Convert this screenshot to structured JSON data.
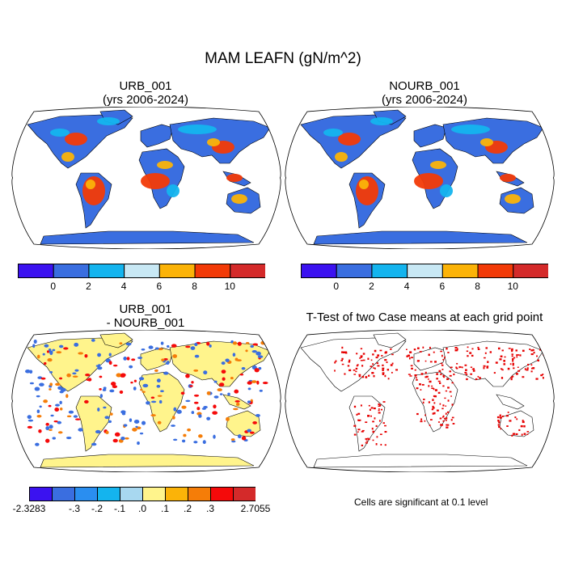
{
  "figure": {
    "title": "MAM LEAFN (gN/m^2)"
  },
  "panels": [
    {
      "line1": "URB_001",
      "line2": "(yrs 2006-2024)"
    },
    {
      "line1": "NOURB_001",
      "line2": "(yrs 2006-2024)"
    },
    {
      "line1": "URB_001",
      "line2": "- NOURB_001"
    },
    {
      "line1": "T-Test of two Case means at each grid point",
      "line2": ""
    }
  ],
  "colorbar_main": {
    "colors": [
      "#3b12f0",
      "#3a6ee0",
      "#14b4ee",
      "#c8e8f4",
      "#fbb308",
      "#f23a07",
      "#d42a2a"
    ],
    "tick_labels": [
      "0",
      "2",
      "4",
      "6",
      "8",
      "10"
    ]
  },
  "colorbar_diff": {
    "colors": [
      "#3b12f0",
      "#3a6ee0",
      "#2a8ef0",
      "#14b4ee",
      "#a8d8f0",
      "#fff48c",
      "#fbb308",
      "#f57d08",
      "#f50a0a",
      "#d42a2a"
    ],
    "tick_labels": [
      "-2.3283",
      "-.3",
      "-.2",
      "-.1",
      ".0",
      ".1",
      ".2",
      ".3",
      "2.7055"
    ]
  },
  "significance_note": "Cells are significant at 0.1 level",
  "map_colors": {
    "land_main": "#3a6ee0",
    "land_diff": "#fff48c",
    "land_ttest": "#ffffff",
    "hot_main": "#f23a07",
    "warm_main": "#fbb308",
    "cool_main": "#14b4ee",
    "sig": "#e60000",
    "neg_diff": "#3a6ee0",
    "pos_diff": "#f57d08"
  }
}
